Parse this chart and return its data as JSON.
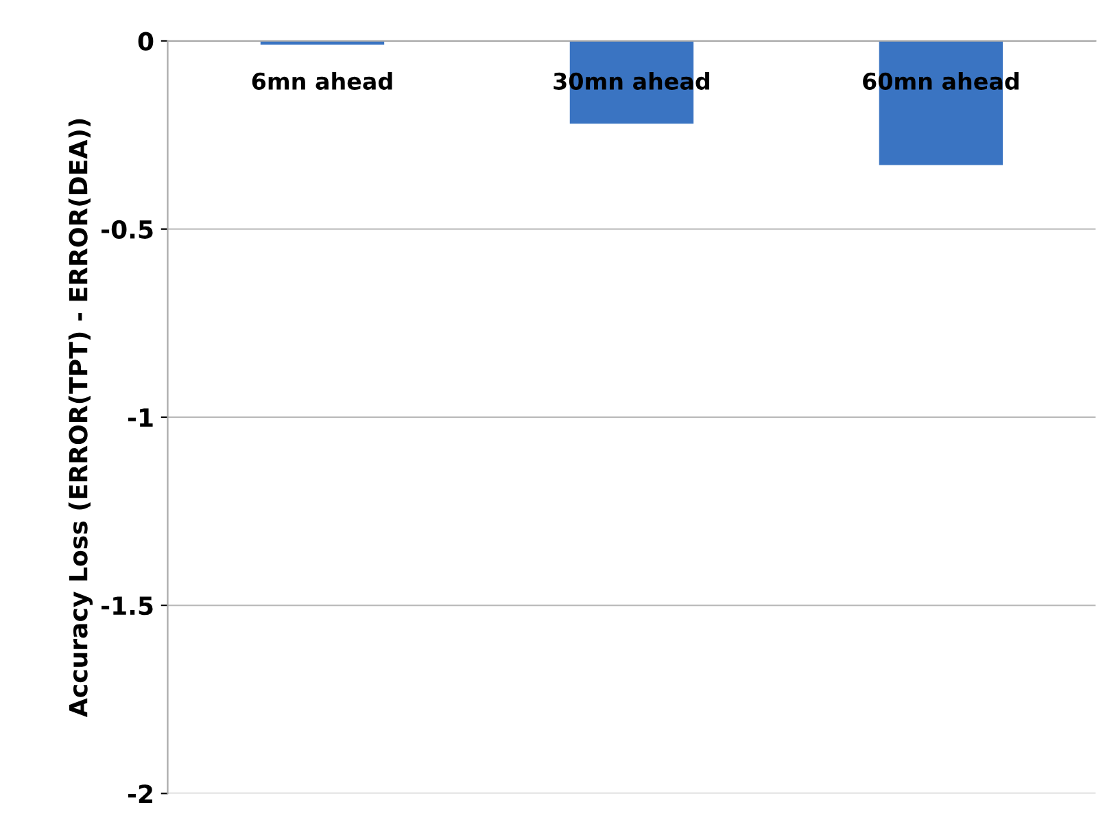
{
  "chart_data": {
    "type": "bar",
    "ylabel": "Accuracy Loss (ERROR(TPT) - ERROR(DEA))",
    "categories": [
      "6mn ahead",
      "30mn ahead",
      "60mn ahead"
    ],
    "values": [
      -0.01,
      -0.22,
      -0.33
    ],
    "color": "#3a74c2",
    "ylim": [
      -2,
      0
    ],
    "yticks": [
      0,
      -0.5,
      -1,
      -1.5,
      -2
    ],
    "grid": "y",
    "legend": false
  }
}
